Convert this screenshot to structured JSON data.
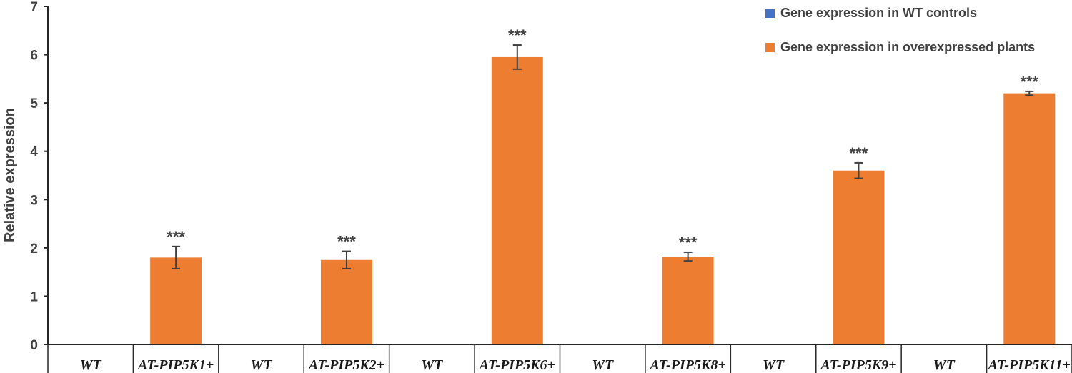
{
  "chart_data": {
    "type": "bar",
    "ylabel": "Relative expression",
    "ylim": [
      0,
      7
    ],
    "yticks": [
      0,
      1,
      2,
      3,
      4,
      5,
      6,
      7
    ],
    "grid": false,
    "legend_position": "top-right",
    "categories": [
      "WT",
      "AT-PIP5K1+",
      "WT",
      "AT-PIP5K2+",
      "WT",
      "AT-PIP5K6+",
      "WT",
      "AT-PIP5K8+",
      "WT",
      "AT-PIP5K9+",
      "WT",
      "AT-PIP5K11+"
    ],
    "series": [
      {
        "name": "Gene expression in WT controls",
        "color": "#4472C4",
        "values": [
          0,
          null,
          0,
          null,
          0,
          null,
          0,
          null,
          0,
          null,
          0,
          null
        ]
      },
      {
        "name": "Gene expression in overexpressed plants",
        "color": "#ED7D31",
        "values": [
          null,
          1.8,
          null,
          1.75,
          null,
          5.95,
          null,
          1.82,
          null,
          3.6,
          null,
          5.2
        ],
        "errors": [
          null,
          0.23,
          null,
          0.18,
          null,
          0.25,
          null,
          0.09,
          null,
          0.16,
          null,
          0.04
        ],
        "annotations": [
          null,
          "***",
          null,
          "***",
          null,
          "***",
          null,
          "***",
          null,
          "***",
          null,
          "***"
        ]
      }
    ]
  }
}
